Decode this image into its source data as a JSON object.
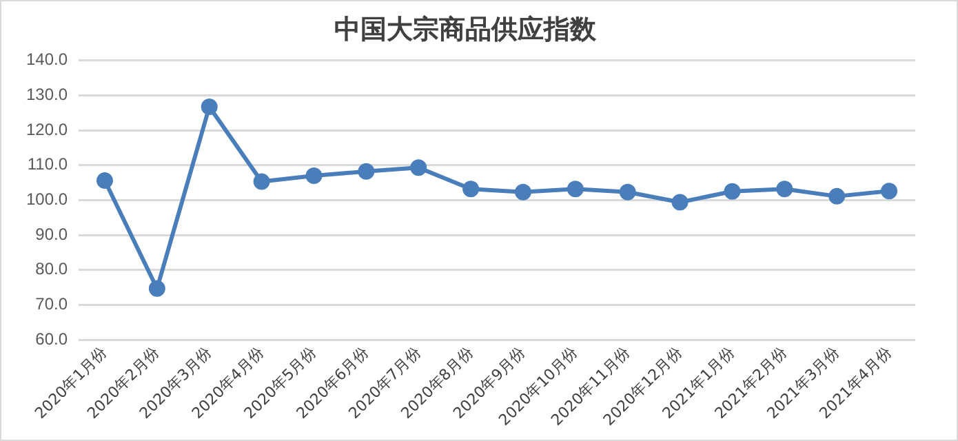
{
  "chart_data": {
    "type": "line",
    "title": "中国大宗商品供应指数",
    "categories": [
      "2020年1月份",
      "2020年2月份",
      "2020年3月份",
      "2020年4月份",
      "2020年5月份",
      "2020年6月份",
      "2020年7月份",
      "2020年8月份",
      "2020年9月份",
      "2020年10月份",
      "2020年11月份",
      "2020年12月份",
      "2021年1月份",
      "2021年2月份",
      "2021年3月份",
      "2021年4月份"
    ],
    "series": [
      {
        "color": "#4a7ebb",
        "values": [
          105.6,
          74.7,
          126.7,
          105.3,
          107.0,
          108.2,
          109.3,
          103.2,
          102.3,
          103.2,
          102.3,
          99.4,
          102.5,
          103.2,
          101.1,
          102.6
        ]
      }
    ],
    "ylim": [
      60,
      140
    ],
    "yticks": [
      {
        "value": 60,
        "label": "60.0"
      },
      {
        "value": 70,
        "label": "70.0"
      },
      {
        "value": 80,
        "label": "80.0"
      },
      {
        "value": 90,
        "label": "90.0"
      },
      {
        "value": 100,
        "label": "100.0"
      },
      {
        "value": 110,
        "label": "110.0"
      },
      {
        "value": 120,
        "label": "120.0"
      },
      {
        "value": 130,
        "label": "130.0"
      },
      {
        "value": 140,
        "label": "140.0"
      }
    ],
    "grid": "y",
    "legend": false,
    "marker": "circle",
    "line_style": "solid"
  }
}
